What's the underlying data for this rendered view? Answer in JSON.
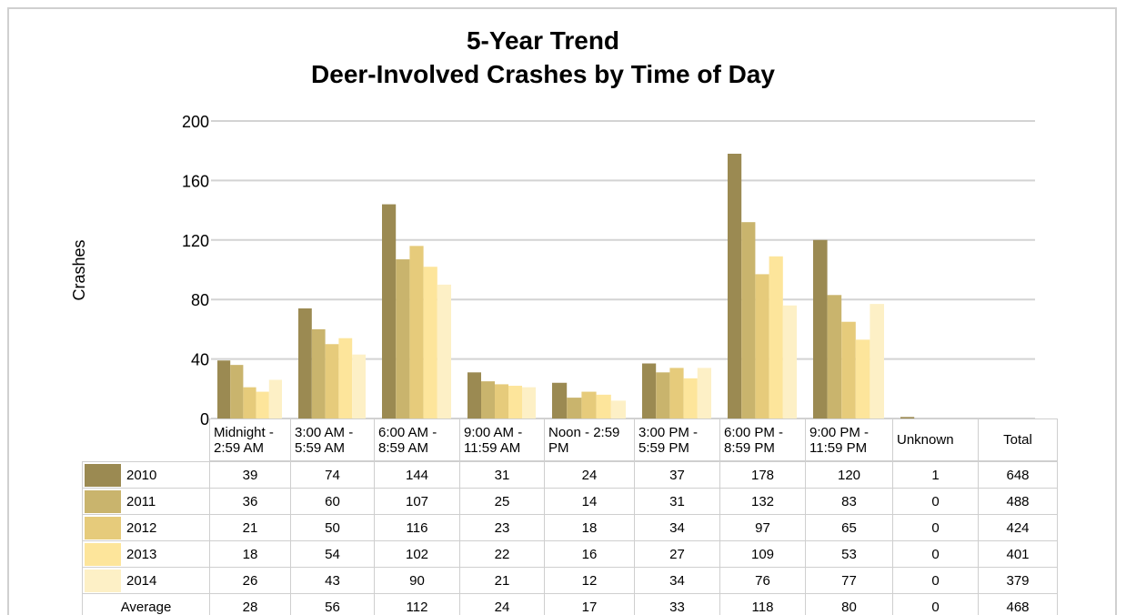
{
  "chart_data": {
    "type": "bar",
    "title": [
      "5-Year Trend",
      "Deer-Involved Crashes by Time of Day"
    ],
    "ylabel": "Crashes",
    "ylim": [
      0,
      200
    ],
    "yticks": [
      0,
      40,
      80,
      120,
      160,
      200
    ],
    "grid": true,
    "categories": [
      "Midnight - 2:59 AM",
      "3:00 AM - 5:59 AM",
      "6:00 AM - 8:59 AM",
      "9:00 AM - 11:59 AM",
      "Noon - 2:59 PM",
      "3:00 PM - 5:59 PM",
      "6:00 PM - 8:59 PM",
      "9:00 PM - 11:59 PM",
      "Unknown"
    ],
    "total_label": "Total",
    "series": [
      {
        "name": "2010",
        "color": "#9b8a52",
        "values": [
          39,
          74,
          144,
          31,
          24,
          37,
          178,
          120,
          1
        ],
        "total": 648
      },
      {
        "name": "2011",
        "color": "#c9b46d",
        "values": [
          36,
          60,
          107,
          25,
          14,
          31,
          132,
          83,
          0
        ],
        "total": 488
      },
      {
        "name": "2012",
        "color": "#e6cb7b",
        "values": [
          21,
          50,
          116,
          23,
          18,
          34,
          97,
          65,
          0
        ],
        "total": 424
      },
      {
        "name": "2013",
        "color": "#fde59b",
        "values": [
          18,
          54,
          102,
          22,
          16,
          27,
          109,
          53,
          0
        ],
        "total": 401
      },
      {
        "name": "2014",
        "color": "#fdf0c6",
        "values": [
          26,
          43,
          90,
          21,
          12,
          34,
          76,
          77,
          0
        ],
        "total": 379
      }
    ],
    "average": {
      "name": "Average",
      "values": [
        28,
        56,
        112,
        24,
        17,
        33,
        118,
        80,
        0
      ],
      "total": 468
    }
  }
}
